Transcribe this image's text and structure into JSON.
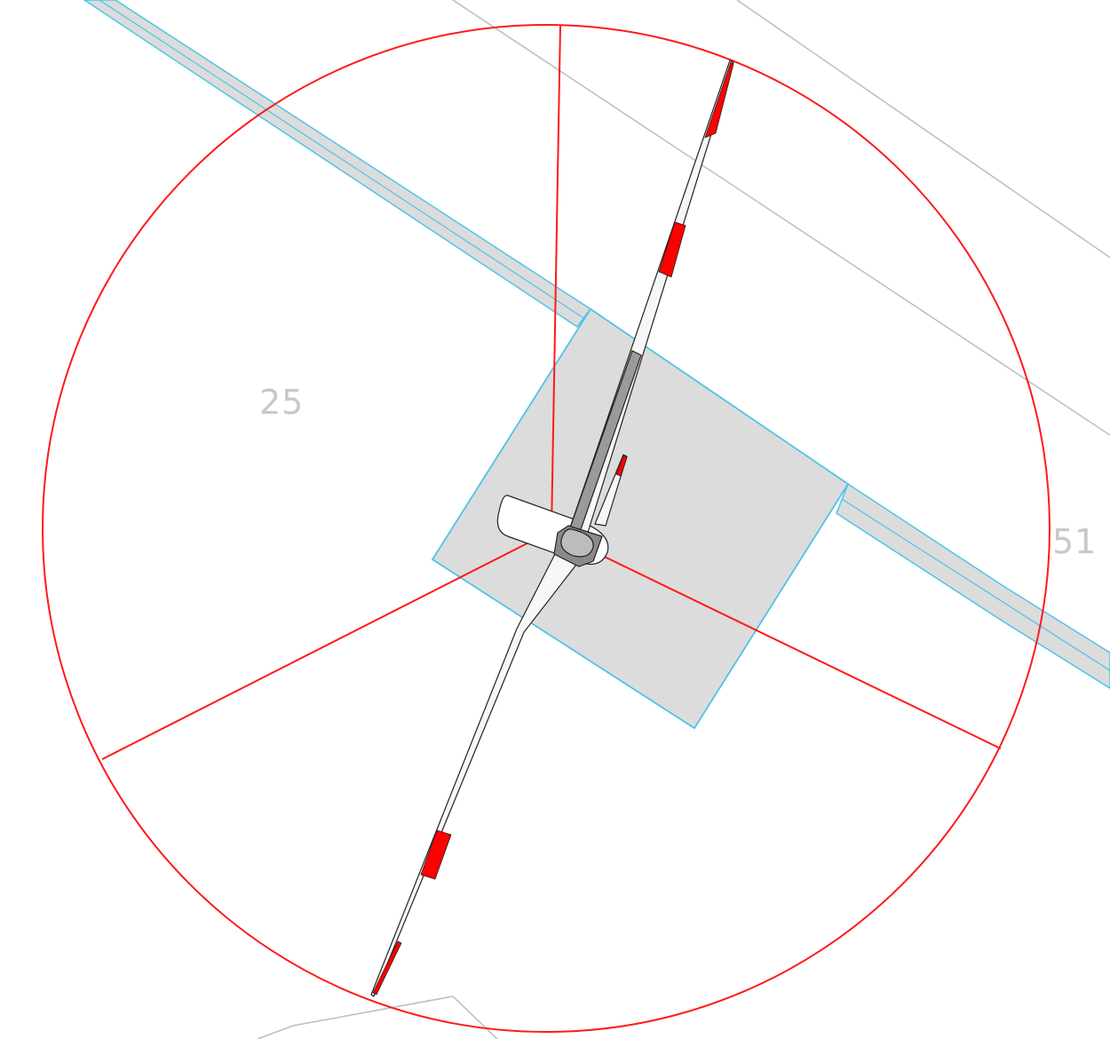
{
  "parcel_labels": {
    "left": "25",
    "right": "51"
  },
  "colors": {
    "background": "#ffffff",
    "rotor_circle": "#ff1a1a",
    "plot_fill": "#dcdcdc",
    "plot_outline": "#4fc3e8",
    "parcel_line": "#bdbdbd",
    "blade_fill": "#f7f7f7",
    "blade_marking": "#ff0000",
    "hub_fill": "#8a8a8a",
    "outline": "#222222"
  },
  "icons": {
    "turbine": "wind-turbine-icon"
  }
}
